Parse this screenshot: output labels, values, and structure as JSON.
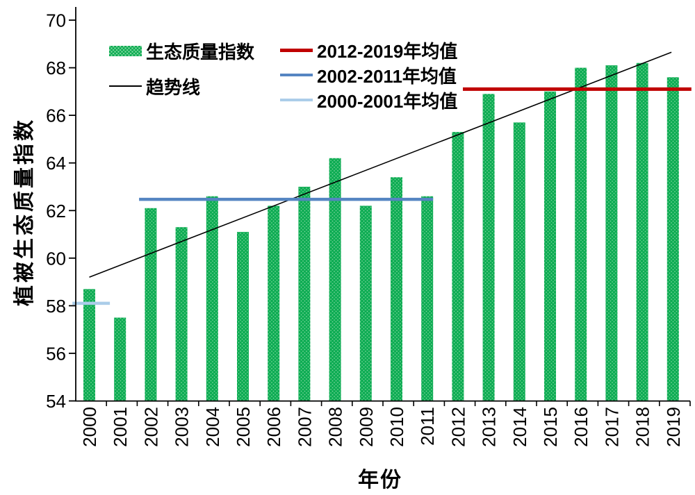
{
  "colors": {
    "bar_base": "#0DAC53",
    "bar_dot": "#7BD49B",
    "trend": "#000000",
    "mean_2012_2019": "#C00000",
    "mean_2002_2011": "#5585C2",
    "mean_2000_2001": "#ABCDE9",
    "axis": "#000000",
    "background": "#FFFFFF"
  },
  "chart_data": {
    "type": "bar",
    "title": "",
    "xlabel": "年份",
    "ylabel": "植被生态质量指数",
    "ylim": [
      54,
      70
    ],
    "yticks": [
      54,
      56,
      58,
      60,
      62,
      64,
      66,
      68,
      70
    ],
    "grid": false,
    "legend_position": "top-inside",
    "categories": [
      "2000",
      "2001",
      "2002",
      "2003",
      "2004",
      "2005",
      "2006",
      "2007",
      "2008",
      "2009",
      "2010",
      "2011",
      "2012",
      "2013",
      "2014",
      "2015",
      "2016",
      "2017",
      "2018",
      "2019"
    ],
    "series": [
      {
        "name": "生态质量指数",
        "type": "bar",
        "values": [
          58.7,
          57.5,
          62.1,
          61.3,
          62.6,
          61.1,
          62.2,
          63.0,
          64.2,
          62.2,
          63.4,
          62.6,
          65.3,
          66.9,
          65.7,
          67.0,
          68.0,
          68.1,
          68.2,
          67.6
        ]
      }
    ],
    "trend_line": {
      "name": "趋势线",
      "x1_index": 0,
      "value1": 59.2,
      "x2_index": 18.95,
      "value2": 68.65
    },
    "mean_lines": [
      {
        "name": "2012-2019年均值",
        "value": 67.1,
        "x1_index": 12.16,
        "x2_index": 19.6,
        "thickness": 5,
        "color_key": "mean_2012_2019"
      },
      {
        "name": "2002-2011年均值",
        "value": 62.47,
        "x1_index": 1.62,
        "x2_index": 11.19,
        "thickness": 4.5,
        "color_key": "mean_2002_2011"
      },
      {
        "name": "2000-2001年均值",
        "value": 58.1,
        "x1_index": -0.55,
        "x2_index": 0.67,
        "thickness": 4.5,
        "color_key": "mean_2000_2001"
      }
    ]
  }
}
